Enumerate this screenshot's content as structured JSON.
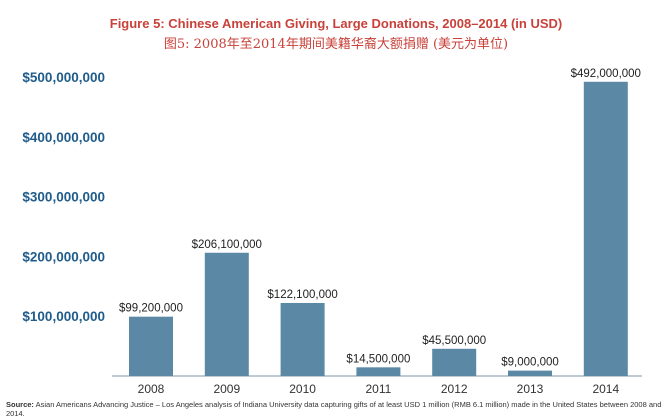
{
  "chart_data": {
    "type": "bar",
    "title": "Figure 5: Chinese American Giving, Large Donations, 2008–2014 (in USD)",
    "subtitle": "图5: 2008年至2014年期间美籍华裔大额捐赠 (美元为单位)",
    "xlabel": "",
    "ylabel": "",
    "categories": [
      "2008",
      "2009",
      "2010",
      "2011",
      "2012",
      "2013",
      "2014"
    ],
    "values": [
      99200000,
      206100000,
      122100000,
      14500000,
      45500000,
      9000000,
      492000000
    ],
    "data_labels": [
      "$99,200,000",
      "$206,100,000",
      "$122,100,000",
      "$14,500,000",
      "$45,500,000",
      "$9,000,000",
      "$492,000,000"
    ],
    "ylim": [
      0,
      500000000
    ],
    "yticks": [
      100000000,
      200000000,
      300000000,
      400000000,
      500000000
    ],
    "ytick_labels": [
      "$100,000,000",
      "$200,000,000",
      "$300,000,000",
      "$400,000,000",
      "$500,000,000"
    ],
    "grid": false,
    "bar_color": "#5b88a5",
    "title_color": "#c8413a",
    "axis_label_color": "#1f5c8b"
  },
  "source": {
    "label": "Source:",
    "text": "Asian Americans Advancing Justice – Los Angeles analysis of Indiana University data capturing gifts of at least USD 1 million (RMB 6.1 million) made in the United States between 2008 and 2014."
  }
}
